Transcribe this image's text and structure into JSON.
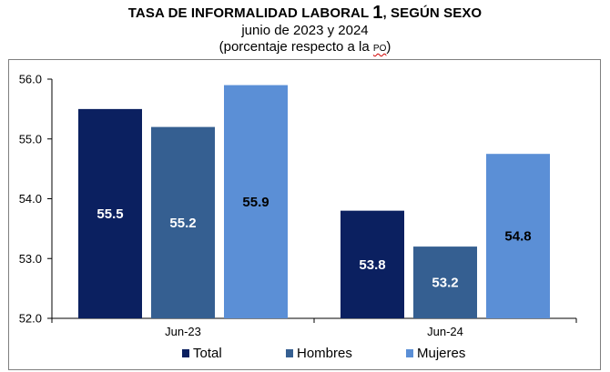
{
  "chart_data": {
    "type": "bar",
    "title": "TASA DE INFORMALIDAD LABORAL",
    "title_number": "1",
    "title_suffix": ", SEGÚN SEXO",
    "subtitle": "junio de 2023 y 2024",
    "subtitle2_main": "(porcentaje respecto a la",
    "subtitle2_small": "PO",
    "subtitle2_end": ")",
    "categories": [
      "Jun-23",
      "Jun-24"
    ],
    "series": [
      {
        "name": "Total",
        "values": [
          55.5,
          53.8
        ],
        "labels": [
          "55.5",
          "53.8"
        ],
        "color": "#0b2060",
        "label_color": "#ffffff"
      },
      {
        "name": "Hombres",
        "values": [
          55.2,
          53.2
        ],
        "labels": [
          "55.2",
          "53.2"
        ],
        "color": "#355f91",
        "label_color": "#ffffff"
      },
      {
        "name": "Mujeres",
        "values": [
          55.9,
          54.75
        ],
        "labels": [
          "55.9",
          "54.8"
        ],
        "color": "#5b8fd6",
        "label_color": "#000000"
      }
    ],
    "ylim": [
      52.0,
      56.0
    ],
    "yticks": [
      "52.0",
      "53.0",
      "54.0",
      "55.0",
      "56.0"
    ],
    "grid": false,
    "legend_position": "bottom"
  }
}
